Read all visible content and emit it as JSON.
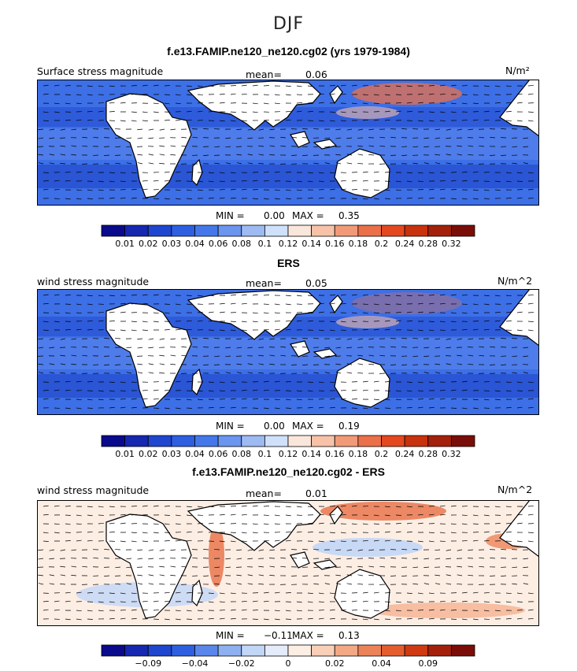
{
  "page": {
    "title": "DJF"
  },
  "seq_colors": [
    "#0a0a8c",
    "#1627b0",
    "#1f46cf",
    "#2e5fe0",
    "#4478ea",
    "#6b95ee",
    "#9ebaf2",
    "#cfe0fb",
    "#fbe6dc",
    "#f7c2a8",
    "#f29a78",
    "#eb7049",
    "#e4481e",
    "#c8320e",
    "#a3200b",
    "#7a0d07"
  ],
  "diff_colors": [
    "#0a0a8c",
    "#1627b0",
    "#1f46cf",
    "#2e5fe0",
    "#5a86ec",
    "#8fb0f0",
    "#c2d6f7",
    "#e4ecfb",
    "#fdeee4",
    "#f9cfb8",
    "#f3a985",
    "#ec8358",
    "#e45d2e",
    "#cf3a12",
    "#a3200b",
    "#7a0d07"
  ],
  "land_outline_icon": "coastline",
  "panels": [
    {
      "title": "f.e13.FAMIP.ne120_ne120.cg02 (yrs 1979-1984)",
      "left_label": "Surface stress magnitude",
      "mean_label": "mean=",
      "mean_value": "0.06",
      "units": "N/m²",
      "min_label": "MIN =",
      "min_value": "0.00",
      "max_label": "MAX =",
      "max_value": "0.35",
      "colorbar_ticks": [
        "0.01",
        "0.02",
        "0.03",
        "0.04",
        "0.06",
        "0.08",
        "0.1",
        "0.12",
        "0.14",
        "0.16",
        "0.18",
        "0.2",
        "0.24",
        "0.28",
        "0.32"
      ],
      "palette": "seq"
    },
    {
      "title": "ERS",
      "left_label": "wind stress magnitude",
      "mean_label": "mean=",
      "mean_value": "0.05",
      "units": "N/m^2",
      "min_label": "MIN =",
      "min_value": "0.00",
      "max_label": "MAX =",
      "max_value": "0.19",
      "colorbar_ticks": [
        "0.01",
        "0.02",
        "0.03",
        "0.04",
        "0.06",
        "0.08",
        "0.1",
        "0.12",
        "0.14",
        "0.16",
        "0.18",
        "0.2",
        "0.24",
        "0.28",
        "0.32"
      ],
      "palette": "seq"
    },
    {
      "title": "f.e13.FAMIP.ne120_ne120.cg02 - ERS",
      "left_label": "wind stress magnitude",
      "mean_label": "mean=",
      "mean_value": "0.01",
      "units": "N/m^2",
      "min_label": "MIN =",
      "min_value": "−0.11",
      "max_label": "MAX =",
      "max_value": "0.13",
      "colorbar_ticks": [
        "",
        "−0.09",
        "",
        "−0.04",
        "",
        "−0.02",
        "",
        "0",
        "",
        "0.02",
        "",
        "0.04",
        "",
        "0.09",
        ""
      ],
      "palette": "diff"
    }
  ],
  "chart_data": [
    {
      "type": "heatmap",
      "title": "f.e13.FAMIP.ne120_ne120.cg02 (yrs 1979-1984)",
      "variable": "Surface stress magnitude",
      "units": "N/m²",
      "mean": 0.06,
      "min": 0.0,
      "max": 0.35,
      "levels": [
        0.01,
        0.02,
        0.03,
        0.04,
        0.06,
        0.08,
        0.1,
        0.12,
        0.14,
        0.16,
        0.18,
        0.2,
        0.24,
        0.28,
        0.32
      ]
    },
    {
      "type": "heatmap",
      "title": "ERS",
      "variable": "wind stress magnitude",
      "units": "N/m^2",
      "mean": 0.05,
      "min": 0.0,
      "max": 0.19,
      "levels": [
        0.01,
        0.02,
        0.03,
        0.04,
        0.06,
        0.08,
        0.1,
        0.12,
        0.14,
        0.16,
        0.18,
        0.2,
        0.24,
        0.28,
        0.32
      ]
    },
    {
      "type": "heatmap",
      "title": "f.e13.FAMIP.ne120_ne120.cg02 - ERS",
      "variable": "wind stress magnitude",
      "units": "N/m^2",
      "mean": 0.01,
      "min": -0.11,
      "max": 0.13,
      "levels": [
        -0.09,
        -0.04,
        -0.02,
        0,
        0.02,
        0.04,
        0.09
      ]
    }
  ]
}
